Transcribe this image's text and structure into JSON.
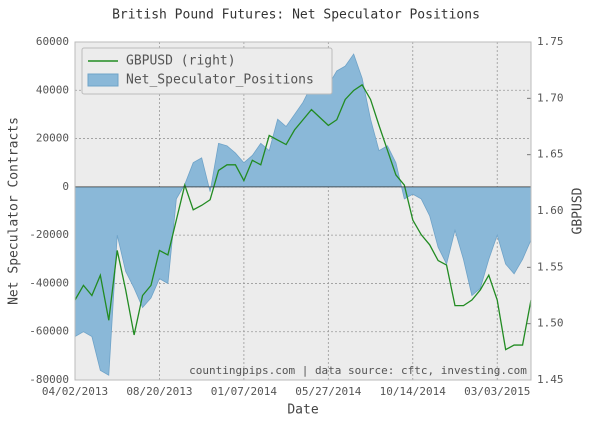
{
  "chart_data": {
    "type": "line",
    "title": "British Pound Futures: Net Speculator Positions",
    "xlabel": "Date",
    "ylabel": "Net Speculator Contracts",
    "y2label": "GBPUSD",
    "annotation": "countingpips.com | data source: cftc, investing.com",
    "x": [
      "04/02/2013",
      "04/16/2013",
      "04/30/2013",
      "05/14/2013",
      "05/28/2013",
      "06/11/2013",
      "06/25/2013",
      "07/09/2013",
      "07/23/2013",
      "08/06/2013",
      "08/20/2013",
      "09/03/2013",
      "09/17/2013",
      "10/01/2013",
      "10/15/2013",
      "10/29/2013",
      "11/12/2013",
      "11/26/2013",
      "12/10/2013",
      "12/24/2013",
      "01/07/2014",
      "01/21/2014",
      "02/04/2014",
      "02/18/2014",
      "03/04/2014",
      "03/18/2014",
      "04/01/2014",
      "04/15/2014",
      "04/29/2014",
      "05/13/2014",
      "05/27/2014",
      "06/10/2014",
      "06/24/2014",
      "07/08/2014",
      "07/22/2014",
      "08/05/2014",
      "08/19/2014",
      "09/02/2014",
      "09/16/2014",
      "09/30/2014",
      "10/14/2014",
      "10/28/2014",
      "11/11/2014",
      "11/25/2014",
      "12/09/2014",
      "12/23/2014",
      "01/06/2015",
      "01/20/2015",
      "02/03/2015",
      "02/17/2015",
      "03/03/2015",
      "03/17/2015",
      "03/31/2015",
      "04/14/2015",
      "04/28/2015"
    ],
    "series": [
      {
        "name": "GBPUSD (right)",
        "color": "#228b22",
        "type": "line",
        "axis": "y2",
        "values": [
          1.521,
          1.534,
          1.525,
          1.543,
          1.503,
          1.565,
          1.53,
          1.49,
          1.525,
          1.534,
          1.565,
          1.561,
          1.592,
          1.623,
          1.601,
          1.605,
          1.61,
          1.636,
          1.641,
          1.641,
          1.627,
          1.645,
          1.641,
          1.667,
          1.663,
          1.659,
          1.672,
          1.681,
          1.69,
          1.683,
          1.676,
          1.681,
          1.699,
          1.707,
          1.712,
          1.699,
          1.676,
          1.654,
          1.632,
          1.623,
          1.592,
          1.579,
          1.57,
          1.556,
          1.552,
          1.516,
          1.516,
          1.521,
          1.53,
          1.543,
          1.521,
          1.477,
          1.481,
          1.481,
          1.521
        ]
      },
      {
        "name": "Net_Speculator_Positions",
        "color": "#8ab8d8",
        "type": "area",
        "values": [
          -62000,
          -60000,
          -62000,
          -76000,
          -78000,
          -20000,
          -35000,
          -42000,
          -50000,
          -46000,
          -38000,
          -40000,
          -5000,
          1000,
          10000,
          12000,
          -2000,
          18000,
          17000,
          14000,
          10000,
          13000,
          18000,
          15000,
          28000,
          25000,
          30000,
          35000,
          42000,
          45000,
          42000,
          48000,
          50000,
          55000,
          45000,
          28000,
          15000,
          17000,
          10000,
          -5000,
          -3000,
          -5000,
          -12000,
          -25000,
          -32000,
          -18000,
          -30000,
          -45000,
          -42000,
          -30000,
          -20000,
          -32000,
          -36000,
          -30000,
          -22000
        ]
      }
    ],
    "xlim": [
      "04/02/2013",
      "04/28/2015"
    ],
    "xticks": [
      "04/02/2013",
      "08/20/2013",
      "01/07/2014",
      "05/27/2014",
      "10/14/2014",
      "03/03/2015"
    ],
    "ylim": [
      -80000,
      60000
    ],
    "yticks": [
      -80000,
      -60000,
      -40000,
      -20000,
      0,
      20000,
      40000,
      60000
    ],
    "y2lim": [
      1.45,
      1.75
    ],
    "y2ticks": [
      1.45,
      {
        "value": 1.5,
        "label": "1.50"
      },
      1.55,
      {
        "value": 1.6,
        "label": "1.60"
      },
      1.65,
      {
        "value": 1.7,
        "label": "1.70"
      },
      1.75
    ],
    "grid": true,
    "legend": "upper left"
  }
}
